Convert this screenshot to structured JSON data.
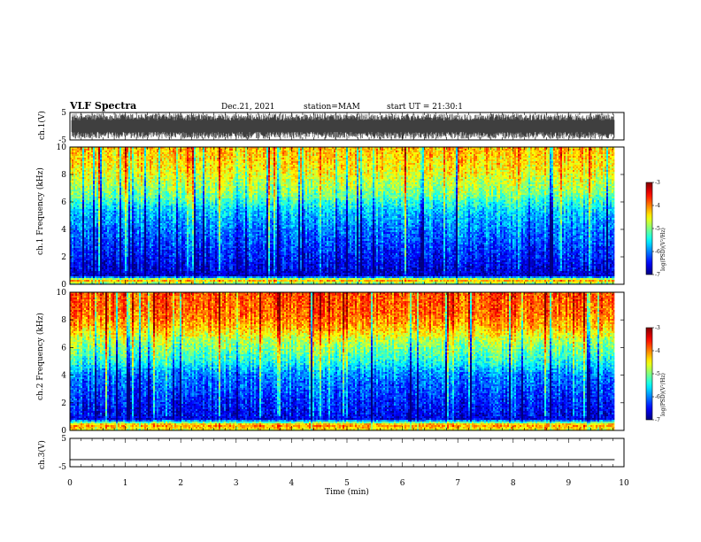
{
  "header": {
    "title": "VLF Spectra",
    "date": "Dec.21, 2021",
    "station": "station=MAM",
    "start_ut": "start UT =  21:30:1"
  },
  "chart_data": [
    {
      "type": "line",
      "panel": "waveform-ch1",
      "ylabel": "ch.1(V)",
      "ylim": [
        -5,
        5
      ],
      "yticks": [
        "5",
        "-5"
      ],
      "x": [
        0,
        9.83
      ],
      "xlim": [
        0,
        10
      ],
      "description_range_v": [
        -4.6,
        4.6
      ]
    },
    {
      "type": "heatmap",
      "panel": "spectrogram-ch1",
      "ylabel": "ch.1 Frequency (kHz)",
      "ylim": [
        0,
        10
      ],
      "yticks": [
        "0",
        "2",
        "4",
        "6",
        "8",
        "10"
      ],
      "xlim": [
        0,
        10
      ],
      "x_extent": [
        0,
        9.83
      ],
      "colorbar": {
        "label": "log(PSD)(V²/Hz)",
        "range": [
          -7,
          -3
        ],
        "ticks": [
          "-3",
          "-4",
          "-5",
          "-6",
          "-7"
        ]
      },
      "profile_log_psd": [
        {
          "f": 0.0,
          "v": -5.2
        },
        {
          "f": 0.3,
          "v": -4.0
        },
        {
          "f": 0.6,
          "v": -6.7
        },
        {
          "f": 2.0,
          "v": -6.4
        },
        {
          "f": 4.0,
          "v": -6.0
        },
        {
          "f": 5.5,
          "v": -5.6
        },
        {
          "f": 6.5,
          "v": -5.0
        },
        {
          "f": 7.5,
          "v": -4.7
        },
        {
          "f": 8.5,
          "v": -4.4
        },
        {
          "f": 10.0,
          "v": -4.2
        }
      ]
    },
    {
      "type": "heatmap",
      "panel": "spectrogram-ch2",
      "ylabel": "ch.2 Frequency (kHz)",
      "ylim": [
        0,
        10
      ],
      "yticks": [
        "0",
        "2",
        "4",
        "6",
        "8",
        "10"
      ],
      "xlim": [
        0,
        10
      ],
      "x_extent": [
        0,
        9.83
      ],
      "colorbar": {
        "label": "log(PSD)(V²/Hz)",
        "range": [
          -7,
          -3
        ],
        "ticks": [
          "-3",
          "-4",
          "-5",
          "-6",
          "-7"
        ]
      },
      "profile_log_psd": [
        {
          "f": 0.0,
          "v": -4.6
        },
        {
          "f": 0.4,
          "v": -4.0
        },
        {
          "f": 0.8,
          "v": -6.6
        },
        {
          "f": 2.0,
          "v": -6.4
        },
        {
          "f": 4.0,
          "v": -6.0
        },
        {
          "f": 5.0,
          "v": -5.4
        },
        {
          "f": 6.5,
          "v": -4.8
        },
        {
          "f": 7.5,
          "v": -4.2
        },
        {
          "f": 8.5,
          "v": -3.9
        },
        {
          "f": 10.0,
          "v": -3.8
        }
      ]
    },
    {
      "type": "line",
      "panel": "waveform-ch3",
      "ylabel": "ch.3(V)",
      "ylim": [
        -5,
        5
      ],
      "yticks": [
        "5",
        "-5"
      ],
      "x": [
        0,
        9.83
      ],
      "y": [
        -2.5,
        -2.5
      ],
      "xlim": [
        0,
        10
      ],
      "xlabel": "Time (min)",
      "xticks": [
        "0",
        "1",
        "2",
        "3",
        "4",
        "5",
        "6",
        "7",
        "8",
        "9",
        "10"
      ]
    }
  ]
}
